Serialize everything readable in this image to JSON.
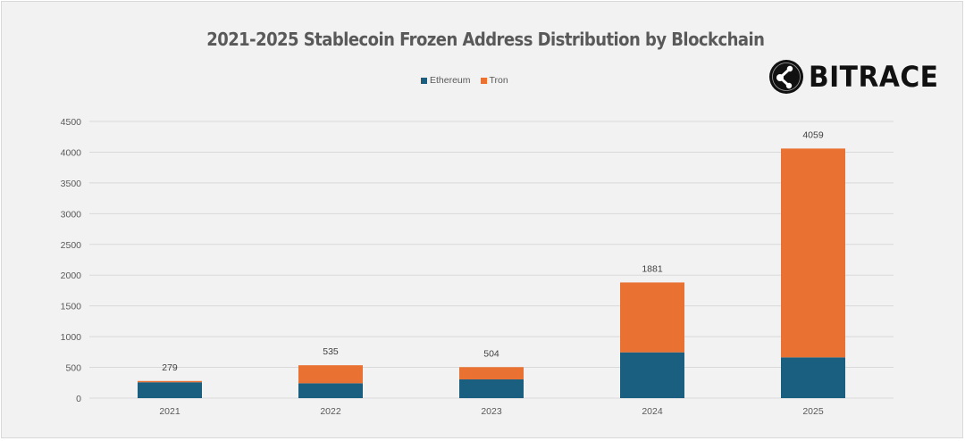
{
  "brand": {
    "name": "BITRACE"
  },
  "chart_data": {
    "type": "bar",
    "stacked": true,
    "title": "2021-2025 Stablecoin Frozen Address Distribution by Blockchain",
    "xlabel": "",
    "ylabel": "",
    "categories": [
      "2021",
      "2022",
      "2023",
      "2024",
      "2025"
    ],
    "series": [
      {
        "name": "Ethereum",
        "color": "#1a5f7f",
        "values": [
          258,
          242,
          305,
          745,
          663
        ]
      },
      {
        "name": "Tron",
        "color": "#e97132",
        "values": [
          21,
          293,
          199,
          1136,
          3396
        ]
      }
    ],
    "totals": [
      279,
      535,
      504,
      1881,
      4059
    ],
    "total_labels": [
      "279",
      "535",
      "504",
      "1881",
      "4059"
    ],
    "ylim": [
      0,
      4500
    ],
    "yticks": [
      0,
      500,
      1000,
      1500,
      2000,
      2500,
      3000,
      3500,
      4000,
      4500
    ],
    "ytick_labels": [
      "0",
      "500",
      "1000",
      "1500",
      "2000",
      "2500",
      "3000",
      "3500",
      "4000",
      "4500"
    ],
    "grid": true,
    "legend_position": "top"
  }
}
